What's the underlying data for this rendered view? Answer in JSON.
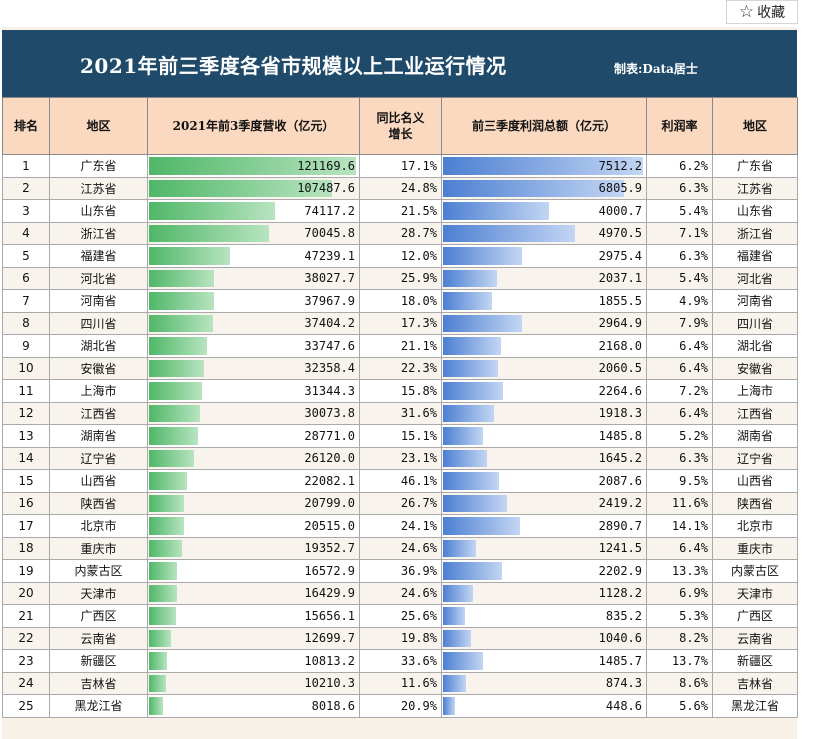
{
  "favorite": {
    "icon": "star-outline-icon",
    "label": "收藏"
  },
  "banner": {
    "title": "2021年前三季度各省市规模以上工业运行情况",
    "maker": "制表:Data居士"
  },
  "headers": [
    "排名",
    "地区",
    "2021年前3季度营收（亿元）",
    "同比名义增长",
    "前三季度利润总额（亿元）",
    "利润率",
    "地区"
  ],
  "colors": {
    "banner": "#1f4a69",
    "header_bg": "#fbd9c0",
    "revenue_bar": "#4fb768",
    "profit_bar": "#4c7fd2"
  },
  "rows": [
    {
      "rank": "1",
      "region": "广东省",
      "revenue": "121169.6",
      "growth": "17.1%",
      "profit": "7512.2",
      "margin": "6.2%",
      "region2": "广东省"
    },
    {
      "rank": "2",
      "region": "江苏省",
      "revenue": "107487.6",
      "growth": "24.8%",
      "profit": "6805.9",
      "margin": "6.3%",
      "region2": "江苏省"
    },
    {
      "rank": "3",
      "region": "山东省",
      "revenue": "74117.2",
      "growth": "21.5%",
      "profit": "4000.7",
      "margin": "5.4%",
      "region2": "山东省"
    },
    {
      "rank": "4",
      "region": "浙江省",
      "revenue": "70045.8",
      "growth": "28.7%",
      "profit": "4970.5",
      "margin": "7.1%",
      "region2": "浙江省"
    },
    {
      "rank": "5",
      "region": "福建省",
      "revenue": "47239.1",
      "growth": "12.0%",
      "profit": "2975.4",
      "margin": "6.3%",
      "region2": "福建省"
    },
    {
      "rank": "6",
      "region": "河北省",
      "revenue": "38027.7",
      "growth": "25.9%",
      "profit": "2037.1",
      "margin": "5.4%",
      "region2": "河北省"
    },
    {
      "rank": "7",
      "region": "河南省",
      "revenue": "37967.9",
      "growth": "18.0%",
      "profit": "1855.5",
      "margin": "4.9%",
      "region2": "河南省"
    },
    {
      "rank": "8",
      "region": "四川省",
      "revenue": "37404.2",
      "growth": "17.3%",
      "profit": "2964.9",
      "margin": "7.9%",
      "region2": "四川省"
    },
    {
      "rank": "9",
      "region": "湖北省",
      "revenue": "33747.6",
      "growth": "21.1%",
      "profit": "2168.0",
      "margin": "6.4%",
      "region2": "湖北省"
    },
    {
      "rank": "10",
      "region": "安徽省",
      "revenue": "32358.4",
      "growth": "22.3%",
      "profit": "2060.5",
      "margin": "6.4%",
      "region2": "安徽省"
    },
    {
      "rank": "11",
      "region": "上海市",
      "revenue": "31344.3",
      "growth": "15.8%",
      "profit": "2264.6",
      "margin": "7.2%",
      "region2": "上海市"
    },
    {
      "rank": "12",
      "region": "江西省",
      "revenue": "30073.8",
      "growth": "31.6%",
      "profit": "1918.3",
      "margin": "6.4%",
      "region2": "江西省"
    },
    {
      "rank": "13",
      "region": "湖南省",
      "revenue": "28771.0",
      "growth": "15.1%",
      "profit": "1485.8",
      "margin": "5.2%",
      "region2": "湖南省"
    },
    {
      "rank": "14",
      "region": "辽宁省",
      "revenue": "26120.0",
      "growth": "23.1%",
      "profit": "1645.2",
      "margin": "6.3%",
      "region2": "辽宁省"
    },
    {
      "rank": "15",
      "region": "山西省",
      "revenue": "22082.1",
      "growth": "46.1%",
      "profit": "2087.6",
      "margin": "9.5%",
      "region2": "山西省"
    },
    {
      "rank": "16",
      "region": "陕西省",
      "revenue": "20799.0",
      "growth": "26.7%",
      "profit": "2419.2",
      "margin": "11.6%",
      "region2": "陕西省"
    },
    {
      "rank": "17",
      "region": "北京市",
      "revenue": "20515.0",
      "growth": "24.1%",
      "profit": "2890.7",
      "margin": "14.1%",
      "region2": "北京市"
    },
    {
      "rank": "18",
      "region": "重庆市",
      "revenue": "19352.7",
      "growth": "24.6%",
      "profit": "1241.5",
      "margin": "6.4%",
      "region2": "重庆市"
    },
    {
      "rank": "19",
      "region": "内蒙古区",
      "revenue": "16572.9",
      "growth": "36.9%",
      "profit": "2202.9",
      "margin": "13.3%",
      "region2": "内蒙古区"
    },
    {
      "rank": "20",
      "region": "天津市",
      "revenue": "16429.9",
      "growth": "24.6%",
      "profit": "1128.2",
      "margin": "6.9%",
      "region2": "天津市"
    },
    {
      "rank": "21",
      "region": "广西区",
      "revenue": "15656.1",
      "growth": "25.6%",
      "profit": "835.2",
      "margin": "5.3%",
      "region2": "广西区"
    },
    {
      "rank": "22",
      "region": "云南省",
      "revenue": "12699.7",
      "growth": "19.8%",
      "profit": "1040.6",
      "margin": "8.2%",
      "region2": "云南省"
    },
    {
      "rank": "23",
      "region": "新疆区",
      "revenue": "10813.2",
      "growth": "33.6%",
      "profit": "1485.7",
      "margin": "13.7%",
      "region2": "新疆区"
    },
    {
      "rank": "24",
      "region": "吉林省",
      "revenue": "10210.3",
      "growth": "11.6%",
      "profit": "874.3",
      "margin": "8.6%",
      "region2": "吉林省"
    },
    {
      "rank": "25",
      "region": "黑龙江省",
      "revenue": "8018.6",
      "growth": "20.9%",
      "profit": "448.6",
      "margin": "5.6%",
      "region2": "黑龙江省"
    }
  ]
}
